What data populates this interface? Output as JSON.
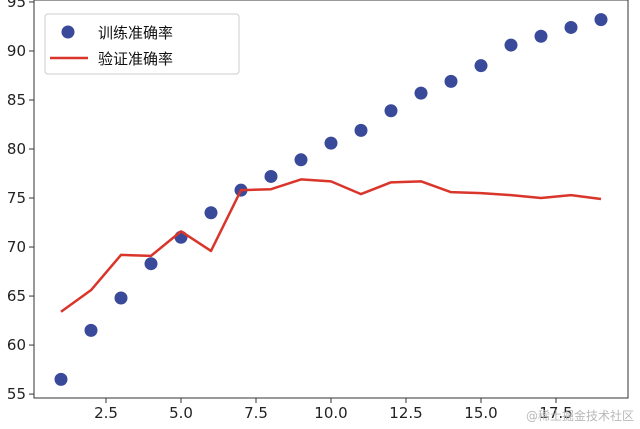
{
  "chart_data": {
    "type": "scatter+line",
    "title": "",
    "xlabel": "",
    "ylabel": "",
    "xlim": [
      0.1,
      19.9
    ],
    "ylim": [
      54.6,
      95.2
    ],
    "xticks": [
      "2.5",
      "5.0",
      "7.5",
      "10.0",
      "12.5",
      "15.0",
      "17.5"
    ],
    "yticks": [
      "55",
      "60",
      "65",
      "70",
      "75",
      "80",
      "85",
      "90",
      "95"
    ],
    "x": [
      1,
      2,
      3,
      4,
      5,
      6,
      7,
      8,
      9,
      10,
      11,
      12,
      13,
      14,
      15,
      16,
      17,
      18,
      19
    ],
    "series": [
      {
        "name": "训练准确率",
        "kind": "scatter",
        "color": "#3a4a9a",
        "values": [
          56.5,
          61.5,
          64.8,
          68.3,
          71.0,
          73.5,
          75.8,
          77.2,
          78.9,
          80.6,
          81.9,
          83.9,
          85.7,
          86.9,
          88.5,
          90.6,
          91.5,
          92.4,
          93.2
        ]
      },
      {
        "name": "验证准确率",
        "kind": "line",
        "color": "#d9352a",
        "values": [
          63.4,
          65.6,
          69.2,
          69.1,
          71.6,
          69.6,
          75.8,
          75.9,
          76.9,
          76.7,
          75.4,
          76.6,
          76.7,
          75.6,
          75.5,
          75.3,
          75.0,
          75.3,
          74.9
        ]
      }
    ],
    "legend": {
      "position": "top-left"
    },
    "grid": false
  },
  "watermark": "@稀土掘金技术社区"
}
